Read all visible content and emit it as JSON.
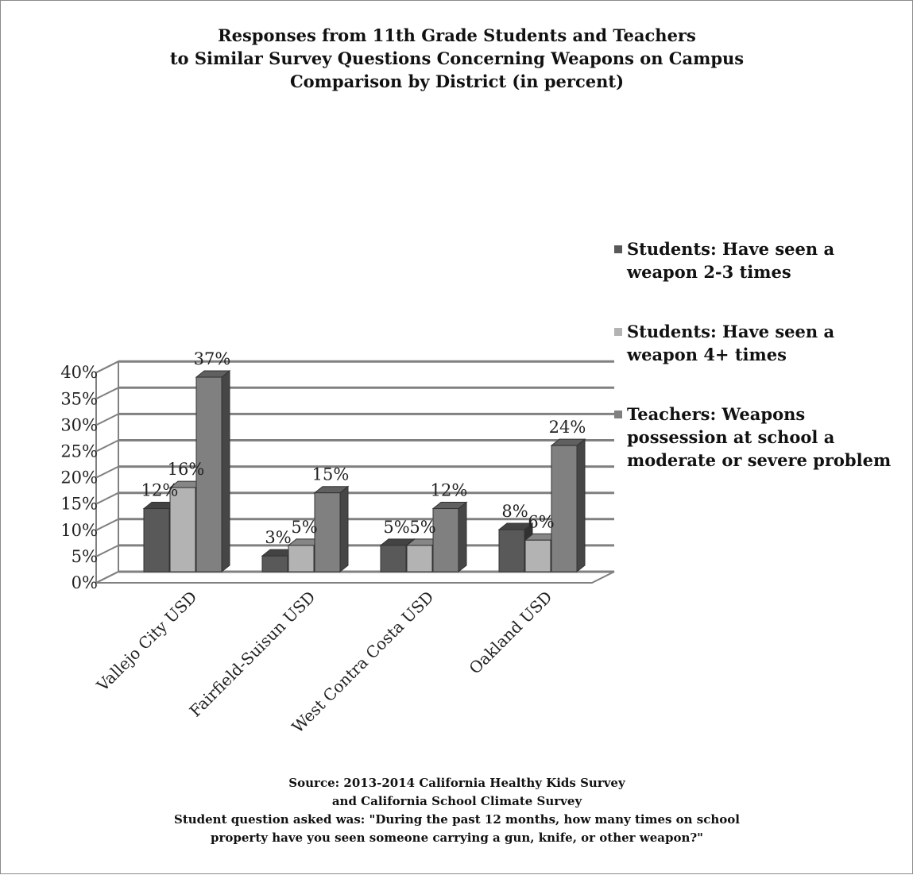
{
  "chart_data": {
    "type": "bar",
    "title": [
      "Responses from 11th Grade Students and Teachers",
      "to Similar Survey Questions Concerning Weapons on Campus",
      "Comparison by District (in percent)"
    ],
    "categories": [
      "Vallejo City USD",
      "Fairfield-Suisun USD",
      "West Contra Costa USD",
      "Oakland USD"
    ],
    "series": [
      {
        "name": [
          "Students: Have seen a",
          "weapon 2-3 times"
        ],
        "values": [
          12,
          3,
          5,
          8
        ],
        "color": "#595959"
      },
      {
        "name": [
          "Students: Have seen a",
          "weapon 4+ times"
        ],
        "values": [
          16,
          5,
          5,
          6
        ],
        "color": "#b3b3b3"
      },
      {
        "name": [
          "Teachers: Weapons",
          "possession at school a",
          "moderate or severe problem"
        ],
        "values": [
          37,
          15,
          12,
          24
        ],
        "color": "#808080"
      }
    ],
    "y_ticks": [
      "0%",
      "5%",
      "10%",
      "15%",
      "20%",
      "25%",
      "30%",
      "35%",
      "40%"
    ],
    "ylim": [
      0,
      40
    ],
    "value_suffix": "%",
    "grid": true,
    "legend_position": "right",
    "notes": [
      "Source: 2013-2014 California Healthy Kids Survey",
      "and California School Climate Survey",
      "Student question asked was: \"During the past 12 months, how many times on school",
      "property have you seen someone carrying a gun, knife, or other weapon?\""
    ]
  }
}
